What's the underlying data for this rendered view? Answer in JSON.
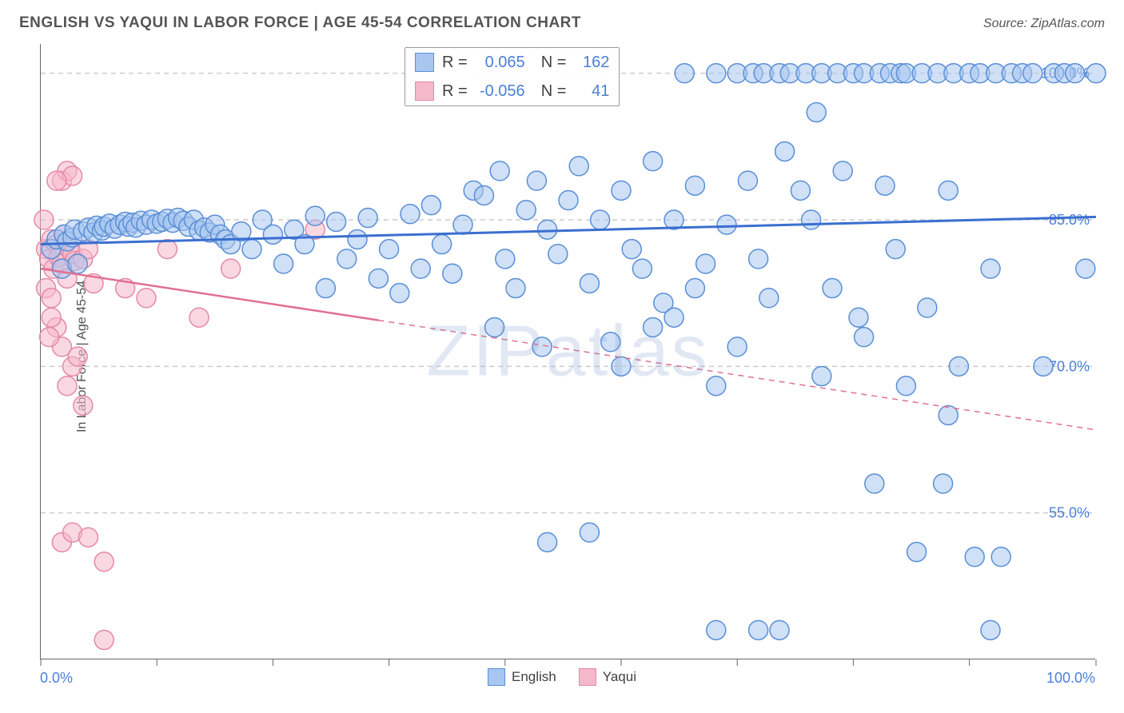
{
  "title": "ENGLISH VS YAQUI IN LABOR FORCE | AGE 45-54 CORRELATION CHART",
  "source": "Source: ZipAtlas.com",
  "ylabel": "In Labor Force | Age 45-54",
  "watermark": "ZIPatlas",
  "chart": {
    "type": "scatter",
    "background_color": "#ffffff",
    "grid_color": "#cccccc",
    "axis_color": "#666666",
    "xlim": [
      0,
      100
    ],
    "ylim": [
      40,
      103
    ],
    "x_tick_positions": [
      0,
      11,
      22,
      33,
      44,
      55,
      66,
      77,
      88,
      100
    ],
    "y_ticks": [
      {
        "value": 55,
        "label": "55.0%"
      },
      {
        "value": 70,
        "label": "70.0%"
      },
      {
        "value": 85,
        "label": "85.0%"
      },
      {
        "value": 100,
        "label": "100.0%"
      }
    ],
    "x_axis_labels": {
      "left": "0.0%",
      "right": "100.0%"
    },
    "label_color": "#4a7fd8",
    "label_fontsize": 18,
    "series": [
      {
        "name": "English",
        "fill_color": "#a8c6f0",
        "stroke_color": "#5a8fd6",
        "fill_opacity": 0.55,
        "marker_radius": 12,
        "R": "0.065",
        "N": "162",
        "trend": {
          "x1": 0,
          "y1": 82.5,
          "x2": 100,
          "y2": 85.3,
          "color": "#3a6fd0",
          "width": 3,
          "dash_from_x": null
        },
        "points": [
          [
            1,
            82
          ],
          [
            1.5,
            83
          ],
          [
            2,
            80
          ],
          [
            2.2,
            83.5
          ],
          [
            2.5,
            82.8
          ],
          [
            3,
            83.2
          ],
          [
            3.2,
            84
          ],
          [
            3.5,
            80.5
          ],
          [
            4,
            83.8
          ],
          [
            4.5,
            84.2
          ],
          [
            5,
            83.7
          ],
          [
            5.3,
            84.4
          ],
          [
            5.8,
            83.9
          ],
          [
            6,
            84.3
          ],
          [
            6.5,
            84.6
          ],
          [
            7,
            84.1
          ],
          [
            7.5,
            84.5
          ],
          [
            8,
            84.8
          ],
          [
            8.3,
            84.3
          ],
          [
            8.7,
            84.7
          ],
          [
            9,
            84.2
          ],
          [
            9.5,
            84.9
          ],
          [
            10,
            84.5
          ],
          [
            10.5,
            85
          ],
          [
            11,
            84.6
          ],
          [
            11.5,
            84.8
          ],
          [
            12,
            85.1
          ],
          [
            12.5,
            84.7
          ],
          [
            13,
            85.2
          ],
          [
            13.5,
            84.9
          ],
          [
            14,
            84.3
          ],
          [
            14.5,
            85
          ],
          [
            15,
            83.9
          ],
          [
            15.5,
            84.2
          ],
          [
            16,
            83.7
          ],
          [
            16.5,
            84.5
          ],
          [
            17,
            83.5
          ],
          [
            17.5,
            83
          ],
          [
            18,
            82.5
          ],
          [
            19,
            83.8
          ],
          [
            20,
            82
          ],
          [
            21,
            85
          ],
          [
            22,
            83.5
          ],
          [
            23,
            80.5
          ],
          [
            24,
            84
          ],
          [
            25,
            82.5
          ],
          [
            26,
            85.4
          ],
          [
            27,
            78
          ],
          [
            28,
            84.8
          ],
          [
            29,
            81
          ],
          [
            30,
            83
          ],
          [
            31,
            85.2
          ],
          [
            32,
            79
          ],
          [
            33,
            82
          ],
          [
            34,
            77.5
          ],
          [
            35,
            85.6
          ],
          [
            36,
            80
          ],
          [
            37,
            86.5
          ],
          [
            38,
            82.5
          ],
          [
            39,
            79.5
          ],
          [
            40,
            84.5
          ],
          [
            41,
            88
          ],
          [
            42,
            87.5
          ],
          [
            43,
            74
          ],
          [
            43.5,
            90
          ],
          [
            44,
            81
          ],
          [
            45,
            78
          ],
          [
            46,
            86
          ],
          [
            47,
            89
          ],
          [
            47.5,
            72
          ],
          [
            48,
            84
          ],
          [
            49,
            81.5
          ],
          [
            50,
            87
          ],
          [
            51,
            90.5
          ],
          [
            52,
            78.5
          ],
          [
            53,
            85
          ],
          [
            54,
            72.5
          ],
          [
            55,
            88
          ],
          [
            56,
            82
          ],
          [
            57,
            80
          ],
          [
            58,
            91
          ],
          [
            59,
            76.5
          ],
          [
            60,
            85
          ],
          [
            61,
            100
          ],
          [
            62,
            88.5
          ],
          [
            63,
            80.5
          ],
          [
            64,
            100
          ],
          [
            65,
            84.5
          ],
          [
            66,
            100
          ],
          [
            67,
            89
          ],
          [
            67.5,
            100
          ],
          [
            68,
            81
          ],
          [
            68.5,
            100
          ],
          [
            69,
            77
          ],
          [
            70,
            100
          ],
          [
            70.5,
            92
          ],
          [
            71,
            100
          ],
          [
            72,
            88
          ],
          [
            72.5,
            100
          ],
          [
            73,
            85
          ],
          [
            73.5,
            96
          ],
          [
            74,
            100
          ],
          [
            75,
            78
          ],
          [
            75.5,
            100
          ],
          [
            76,
            90
          ],
          [
            77,
            100
          ],
          [
            77.5,
            75
          ],
          [
            78,
            100
          ],
          [
            79,
            58
          ],
          [
            79.5,
            100
          ],
          [
            80,
            88.5
          ],
          [
            80.5,
            100
          ],
          [
            81,
            82
          ],
          [
            81.5,
            100
          ],
          [
            82,
            100
          ],
          [
            83,
            51
          ],
          [
            83.5,
            100
          ],
          [
            84,
            76
          ],
          [
            85,
            100
          ],
          [
            85.5,
            58
          ],
          [
            86,
            88
          ],
          [
            86.5,
            100
          ],
          [
            87,
            70
          ],
          [
            88,
            100
          ],
          [
            88.5,
            50.5
          ],
          [
            89,
            100
          ],
          [
            90,
            80
          ],
          [
            90.5,
            100
          ],
          [
            91,
            50.5
          ],
          [
            92,
            100
          ],
          [
            93,
            100
          ],
          [
            94,
            100
          ],
          [
            95,
            70
          ],
          [
            96,
            100
          ],
          [
            97,
            100
          ],
          [
            98,
            100
          ],
          [
            99,
            80
          ],
          [
            100,
            100
          ],
          [
            64,
            43
          ],
          [
            70,
            43
          ],
          [
            48,
            52
          ],
          [
            52,
            53
          ],
          [
            55,
            70
          ],
          [
            60,
            75
          ],
          [
            62,
            78
          ],
          [
            58,
            74
          ],
          [
            64,
            68
          ],
          [
            66,
            72
          ],
          [
            68,
            43
          ],
          [
            74,
            69
          ],
          [
            78,
            73
          ],
          [
            82,
            68
          ],
          [
            86,
            65
          ],
          [
            90,
            43
          ]
        ]
      },
      {
        "name": "Yaqui",
        "fill_color": "#f5b8ca",
        "stroke_color": "#e589a7",
        "fill_opacity": 0.55,
        "marker_radius": 12,
        "R": "-0.056",
        "N": "41",
        "trend": {
          "x1": 0,
          "y1": 80,
          "x2": 100,
          "y2": 63.5,
          "color": "#e07090",
          "width": 2.5,
          "dash_from_x": 32
        },
        "points": [
          [
            0.5,
            82
          ],
          [
            0.8,
            81
          ],
          [
            1,
            83
          ],
          [
            1.2,
            80
          ],
          [
            1.5,
            82.5
          ],
          [
            1.7,
            81.2
          ],
          [
            2,
            80.5
          ],
          [
            2.2,
            83.5
          ],
          [
            2.5,
            79
          ],
          [
            2.7,
            82
          ],
          [
            3,
            81.5
          ],
          [
            3.2,
            80.8
          ],
          [
            0.5,
            78
          ],
          [
            1,
            77
          ],
          [
            0.3,
            85
          ],
          [
            2,
            89
          ],
          [
            2.5,
            90
          ],
          [
            3,
            89.5
          ],
          [
            1.5,
            89
          ],
          [
            4,
            81
          ],
          [
            5,
            78.5
          ],
          [
            4.5,
            82
          ],
          [
            1.5,
            74
          ],
          [
            2,
            72
          ],
          [
            3,
            70
          ],
          [
            2.5,
            68
          ],
          [
            4,
            66
          ],
          [
            3.5,
            71
          ],
          [
            2,
            52
          ],
          [
            3,
            53
          ],
          [
            4.5,
            52.5
          ],
          [
            6,
            50
          ],
          [
            1,
            75
          ],
          [
            0.8,
            73
          ],
          [
            26,
            84
          ],
          [
            12,
            82
          ],
          [
            18,
            80
          ],
          [
            8,
            78
          ],
          [
            10,
            77
          ],
          [
            15,
            75
          ],
          [
            6,
            42
          ]
        ]
      }
    ]
  },
  "legend_bottom": [
    {
      "label": "English",
      "fill": "#a8c6f0",
      "stroke": "#5a8fd6"
    },
    {
      "label": "Yaqui",
      "fill": "#f5b8ca",
      "stroke": "#e589a7"
    }
  ]
}
